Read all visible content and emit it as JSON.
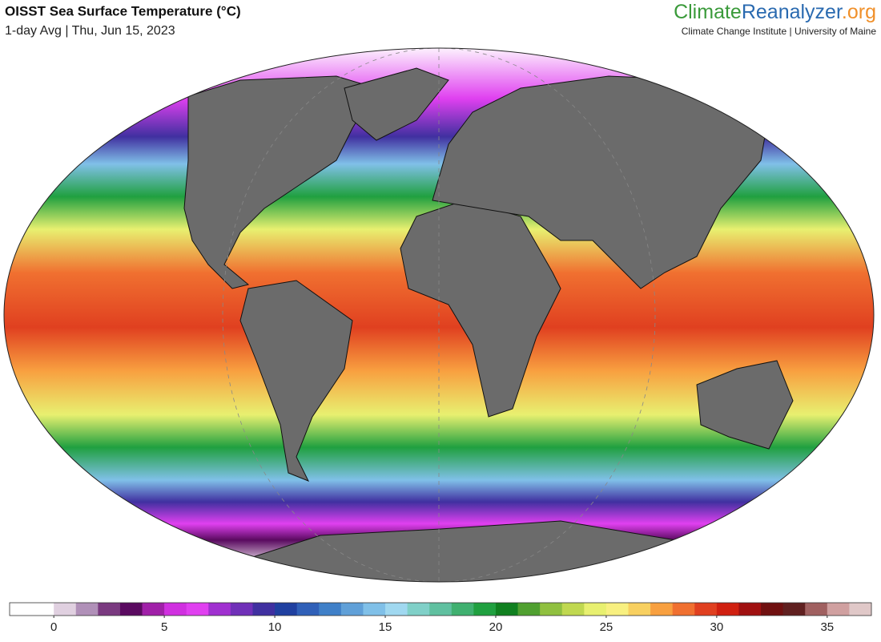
{
  "header": {
    "title": "OISST Sea Surface Temperature (°C)",
    "subtitle": "1-day Avg | Thu, Jun 15, 2023"
  },
  "logo": {
    "part_1": "Climate",
    "part_2": "Reanalyzer",
    "part_3": ".org",
    "tagline": "Climate Change Institute | University of Maine"
  },
  "colorbar": {
    "range": [
      -2,
      37
    ],
    "step": 0.5,
    "ticks": [
      0,
      5,
      10,
      15,
      20,
      25,
      30,
      35
    ],
    "color_stops": [
      {
        "value": -2,
        "color": "#ffffff"
      },
      {
        "value": 0,
        "color": "#e0d0e0"
      },
      {
        "value": 1,
        "color": "#b090b8"
      },
      {
        "value": 2,
        "color": "#7a3a80"
      },
      {
        "value": 3,
        "color": "#5a0a60"
      },
      {
        "value": 4,
        "color": "#a020a8"
      },
      {
        "value": 5,
        "color": "#d030e0"
      },
      {
        "value": 6,
        "color": "#e040f0"
      },
      {
        "value": 7,
        "color": "#a030d0"
      },
      {
        "value": 8,
        "color": "#7030b8"
      },
      {
        "value": 9,
        "color": "#4030a0"
      },
      {
        "value": 10,
        "color": "#2040a0"
      },
      {
        "value": 11,
        "color": "#3060b8"
      },
      {
        "value": 12,
        "color": "#4080c8"
      },
      {
        "value": 13,
        "color": "#60a0d8"
      },
      {
        "value": 14,
        "color": "#80c0e8"
      },
      {
        "value": 15,
        "color": "#a0d8f0"
      },
      {
        "value": 16,
        "color": "#80d0c8"
      },
      {
        "value": 17,
        "color": "#60c0a0"
      },
      {
        "value": 18,
        "color": "#40b070"
      },
      {
        "value": 19,
        "color": "#20a040"
      },
      {
        "value": 20,
        "color": "#108020"
      },
      {
        "value": 21,
        "color": "#50a030"
      },
      {
        "value": 22,
        "color": "#90c040"
      },
      {
        "value": 23,
        "color": "#c0d850"
      },
      {
        "value": 24,
        "color": "#e8f070"
      },
      {
        "value": 25,
        "color": "#f8f080"
      },
      {
        "value": 26,
        "color": "#f8d060"
      },
      {
        "value": 27,
        "color": "#f8a040"
      },
      {
        "value": 28,
        "color": "#f07030"
      },
      {
        "value": 29,
        "color": "#e04020"
      },
      {
        "value": 30,
        "color": "#d02010"
      },
      {
        "value": 31,
        "color": "#a01010"
      },
      {
        "value": 32,
        "color": "#701010"
      },
      {
        "value": 33,
        "color": "#602020"
      },
      {
        "value": 34,
        "color": "#a06060"
      },
      {
        "value": 35,
        "color": "#d0a0a0"
      },
      {
        "value": 36,
        "color": "#e0c8c8"
      },
      {
        "value": 37,
        "color": "#f0e8e8"
      }
    ]
  }
}
